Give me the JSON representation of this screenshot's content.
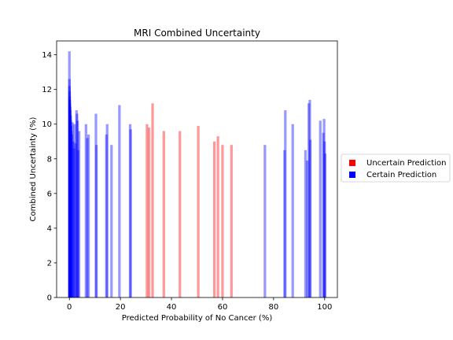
{
  "chart_data": {
    "type": "bar",
    "title": "MRI Combined Uncertainty",
    "xlabel": "Predicted Probability of No Cancer (%)",
    "ylabel": "Combined Uncertainty (%)",
    "xlim": [
      -5,
      105
    ],
    "ylim": [
      0,
      14.8
    ],
    "xticks": [
      0,
      20,
      40,
      60,
      80,
      100
    ],
    "yticks": [
      0,
      2,
      4,
      6,
      8,
      10,
      12,
      14
    ],
    "grid": false,
    "legend_position": "right-outside",
    "colors": {
      "uncertain": "#ff0000",
      "certain": "#0000ff"
    },
    "bar_opacity": 0.4,
    "legend": [
      {
        "label": "Uncertain Prediction",
        "key": "uncertain"
      },
      {
        "label": "Certain Prediction",
        "key": "certain"
      }
    ],
    "series": [
      {
        "name": "Uncertain Prediction",
        "key": "uncertain",
        "x": [
          30.4,
          31.2,
          32.6,
          37.0,
          43.3,
          50.5,
          56.8,
          58.2,
          60.0,
          63.5
        ],
        "y": [
          10.0,
          9.8,
          11.2,
          9.6,
          9.6,
          9.9,
          9.0,
          9.3,
          8.8,
          8.8
        ]
      },
      {
        "name": "Certain Prediction",
        "key": "certain",
        "x": [
          0.0,
          0.0,
          0.05,
          0.1,
          0.1,
          0.15,
          0.2,
          0.3,
          0.4,
          0.5,
          0.6,
          0.7,
          0.8,
          1.0,
          1.2,
          1.5,
          1.8,
          2.0,
          2.4,
          2.8,
          3.0,
          3.2,
          3.4,
          3.8,
          6.5,
          7.0,
          7.5,
          10.4,
          10.6,
          14.5,
          14.8,
          16.5,
          19.6,
          23.8,
          24.0,
          76.6,
          84.3,
          84.6,
          87.5,
          92.5,
          93.2,
          93.8,
          94.2,
          94.4,
          98.3,
          99.5,
          99.8,
          100.0,
          100.2
        ],
        "y": [
          14.2,
          12.6,
          12.2,
          11.9,
          11.6,
          11.4,
          11.2,
          11.0,
          10.8,
          10.5,
          10.2,
          9.9,
          9.6,
          9.4,
          10.1,
          9.0,
          8.6,
          10.0,
          8.9,
          10.8,
          10.6,
          10.2,
          8.5,
          9.6,
          10.0,
          9.2,
          9.4,
          10.6,
          8.8,
          9.4,
          10.0,
          8.8,
          11.1,
          10.0,
          9.7,
          8.8,
          8.5,
          10.8,
          10.0,
          8.5,
          7.9,
          11.2,
          11.4,
          9.1,
          10.2,
          9.5,
          10.3,
          9.0,
          8.3
        ]
      }
    ]
  }
}
